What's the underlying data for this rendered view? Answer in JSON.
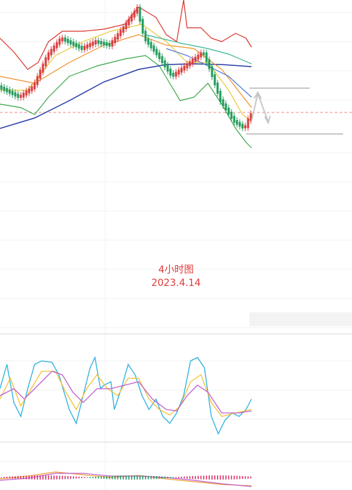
{
  "annotation": {
    "title": "4小时图",
    "date": "2023.4.14"
  }
}
